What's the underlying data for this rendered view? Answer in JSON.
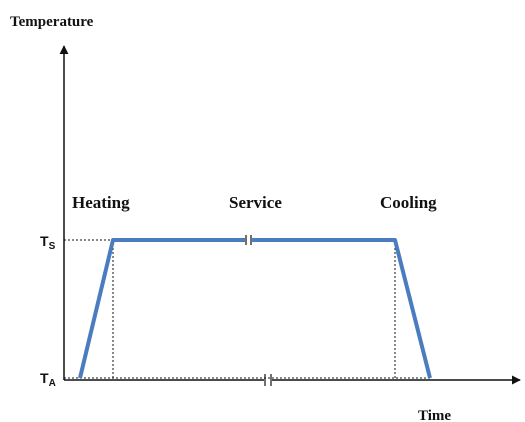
{
  "axes": {
    "y_label": "Temperature",
    "x_label": "Time"
  },
  "phases": [
    "Heating",
    "Service",
    "Cooling"
  ],
  "levels": [
    {
      "main": "T",
      "sub": "S"
    },
    {
      "main": "T",
      "sub": "A"
    }
  ]
}
